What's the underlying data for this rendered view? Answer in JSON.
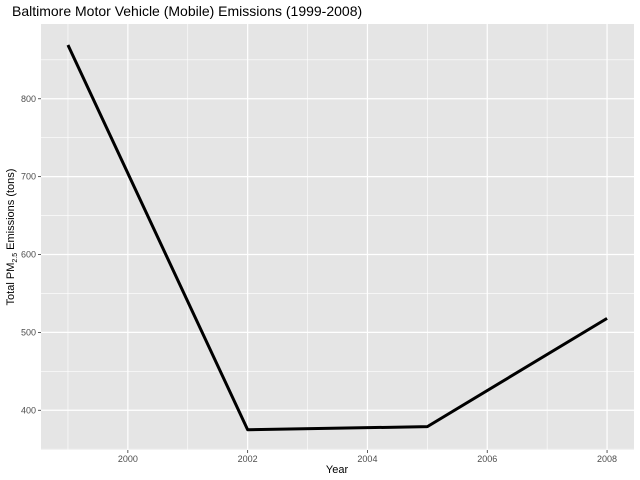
{
  "chart_data": {
    "type": "line",
    "title": "Baltimore Motor Vehicle (Mobile) Emissions (1999-2008)",
    "xlabel": "Year",
    "ylabel": {
      "prefix": "Total PM",
      "subscript": "2.5",
      "suffix": " Emissions (tons)"
    },
    "x": [
      1999,
      2002,
      2005,
      2008
    ],
    "series": [
      {
        "values": [
          869,
          375,
          379,
          518
        ],
        "color": "#000000"
      }
    ],
    "xlim": [
      1998.55,
      2008.45
    ],
    "ylim": [
      349,
      896
    ],
    "xticks": [
      2000,
      2002,
      2004,
      2006,
      2008
    ],
    "xminor": [
      1999,
      2001,
      2003,
      2005,
      2007
    ],
    "yticks": [
      400,
      500,
      600,
      700,
      800
    ],
    "yminor": [
      350,
      450,
      550,
      650,
      750,
      850
    ],
    "grid": true,
    "panel_background": "#e5e5e5",
    "grid_color": "#ffffff"
  }
}
